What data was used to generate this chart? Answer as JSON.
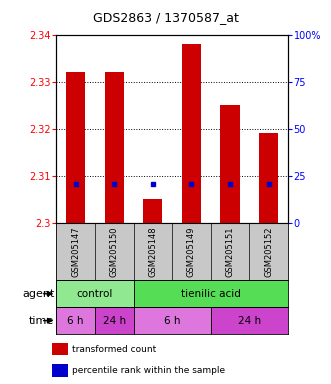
{
  "title": "GDS2863 / 1370587_at",
  "samples": [
    "GSM205147",
    "GSM205150",
    "GSM205148",
    "GSM205149",
    "GSM205151",
    "GSM205152"
  ],
  "bar_values": [
    2.332,
    2.332,
    2.305,
    2.338,
    2.325,
    2.319
  ],
  "bar_base": 2.3,
  "percentile_values": [
    2.3083,
    2.3083,
    2.3083,
    2.3083,
    2.3083,
    2.3083
  ],
  "ylim": [
    2.3,
    2.34
  ],
  "yticks_left": [
    2.3,
    2.31,
    2.32,
    2.33,
    2.34
  ],
  "yticks_right": [
    0,
    25,
    50,
    75,
    100
  ],
  "bar_color": "#cc0000",
  "percentile_color": "#0000cc",
  "agent_row": [
    {
      "label": "control",
      "span": [
        0,
        2
      ],
      "color": "#90e890"
    },
    {
      "label": "tienilic acid",
      "span": [
        2,
        6
      ],
      "color": "#55dd55"
    }
  ],
  "time_row": [
    {
      "label": "6 h",
      "span": [
        0,
        1
      ],
      "color": "#dd77dd"
    },
    {
      "label": "24 h",
      "span": [
        1,
        2
      ],
      "color": "#cc44cc"
    },
    {
      "label": "6 h",
      "span": [
        2,
        4
      ],
      "color": "#dd77dd"
    },
    {
      "label": "24 h",
      "span": [
        4,
        6
      ],
      "color": "#cc44cc"
    }
  ],
  "legend_red_label": "transformed count",
  "legend_blue_label": "percentile rank within the sample",
  "bar_width": 0.5
}
